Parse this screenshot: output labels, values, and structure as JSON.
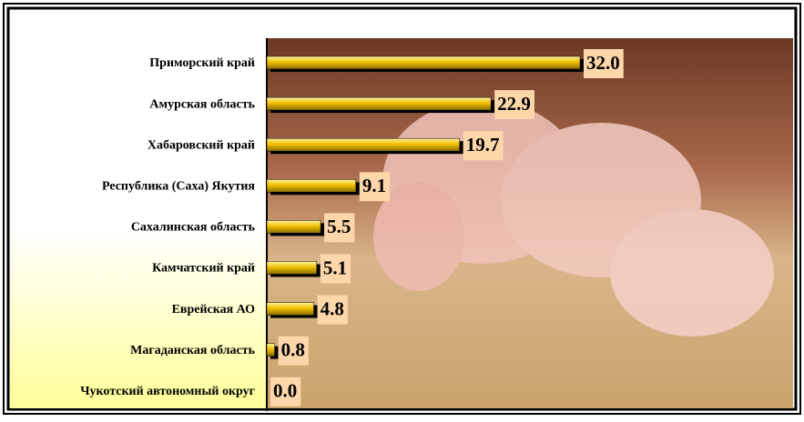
{
  "chart_data": {
    "type": "bar",
    "orientation": "horizontal",
    "categories": [
      "Приморский край",
      "Амурская область",
      "Хабаровский край",
      "Республика (Саха) Якутия",
      "Сахалинская область",
      "Камчатский край",
      "Еврейская АО",
      "Магаданская область",
      "Чукотский автономный округ"
    ],
    "values": [
      32.0,
      22.9,
      19.7,
      9.1,
      5.5,
      5.1,
      4.8,
      0.8,
      0.0
    ],
    "value_labels": [
      "32.0",
      "22.9",
      "19.7",
      "9.1",
      "5.5",
      "5.1",
      "4.8",
      "0.8",
      "0.0"
    ],
    "color": "#e8b800"
  }
}
